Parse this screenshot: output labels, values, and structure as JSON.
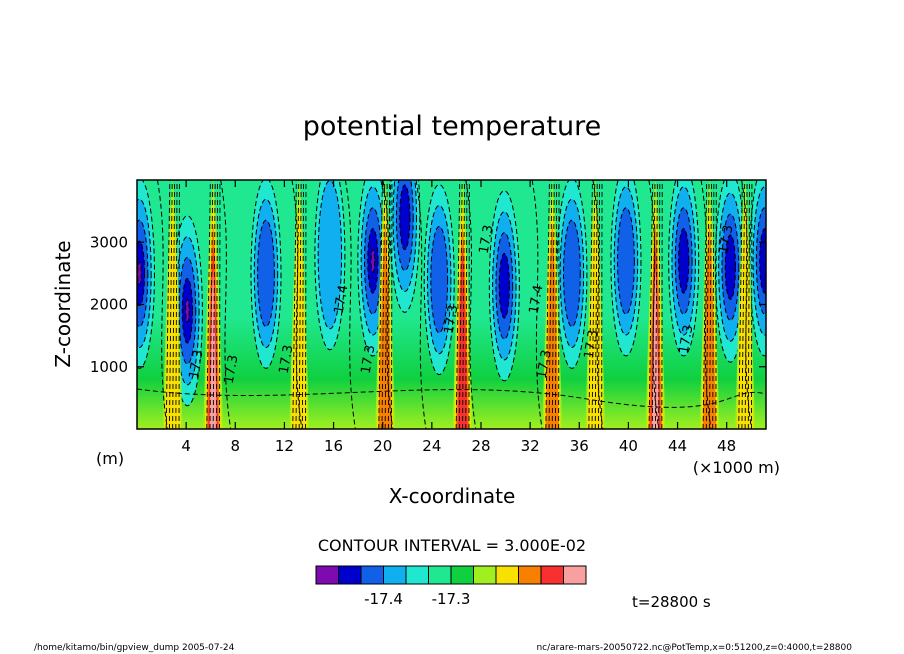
{
  "chart_data": {
    "type": "heatmap",
    "title": "potential temperature",
    "xlabel": "X-coordinate",
    "ylabel": "Z-coordinate",
    "x_unit_label": "(m)",
    "x_scale_label": "(×1000 m)",
    "xlim": [
      0,
      51.2
    ],
    "ylim": [
      0,
      4000
    ],
    "x_ticks": [
      "4",
      "8",
      "12",
      "16",
      "20",
      "24",
      "28",
      "32",
      "36",
      "40",
      "44",
      "48"
    ],
    "x_tick_values": [
      4,
      8,
      12,
      16,
      20,
      24,
      28,
      32,
      36,
      40,
      44,
      48
    ],
    "y_ticks": [
      "1000",
      "2000",
      "3000"
    ],
    "y_tick_values": [
      1000,
      2000,
      3000
    ],
    "contour_interval_text": "CONTOUR INTERVAL = 3.000E-02",
    "colorbar_colors": [
      "#7d0bb0",
      "#0000cc",
      "#1060e8",
      "#10b0f0",
      "#20e8d0",
      "#20e890",
      "#10d040",
      "#a0f020",
      "#f8e000",
      "#f88000",
      "#f83030",
      "#f8a0a0"
    ],
    "colorbar_labels": [
      "-17.4",
      "-17.3"
    ],
    "contour_labels": [
      "17.3",
      "17.4"
    ],
    "colorbar_label_slots": [
      2.5,
      5.5
    ],
    "time_label": "t=28800 s",
    "footer_left": "/home/kitamo/bin/gpview_dump   2005-07-24",
    "footer_right": "nc/arare-mars-20050722.nc@PotTemp,x=0:51200,z=0:4000,t=28800",
    "cold_cores": [
      {
        "x": 0.2,
        "z": 2500,
        "level": 0
      },
      {
        "x": 4.1,
        "z": 1900,
        "level": 0
      },
      {
        "x": 10.5,
        "z": 2500,
        "level": 2
      },
      {
        "x": 15.7,
        "z": 2800,
        "level": 3
      },
      {
        "x": 19.2,
        "z": 2700,
        "level": 0
      },
      {
        "x": 21.8,
        "z": 3400,
        "level": 1
      },
      {
        "x": 24.6,
        "z": 2400,
        "level": 2
      },
      {
        "x": 29.9,
        "z": 2300,
        "level": 1
      },
      {
        "x": 35.4,
        "z": 2500,
        "level": 2
      },
      {
        "x": 39.8,
        "z": 2700,
        "level": 2
      },
      {
        "x": 44.5,
        "z": 2700,
        "level": 1
      },
      {
        "x": 48.3,
        "z": 2600,
        "level": 1
      },
      {
        "x": 51.1,
        "z": 2700,
        "level": 1
      }
    ],
    "warm_plumes": [
      {
        "x": 2.9,
        "level": 8
      },
      {
        "x": 6.2,
        "level": 11
      },
      {
        "x": 13.2,
        "level": 8
      },
      {
        "x": 20.2,
        "level": 9
      },
      {
        "x": 26.5,
        "level": 10
      },
      {
        "x": 33.8,
        "level": 9
      },
      {
        "x": 37.3,
        "level": 8
      },
      {
        "x": 42.2,
        "level": 11
      },
      {
        "x": 46.6,
        "level": 9
      },
      {
        "x": 49.5,
        "level": 8
      }
    ],
    "grid": false,
    "legend": "colorbar bottom-center"
  }
}
